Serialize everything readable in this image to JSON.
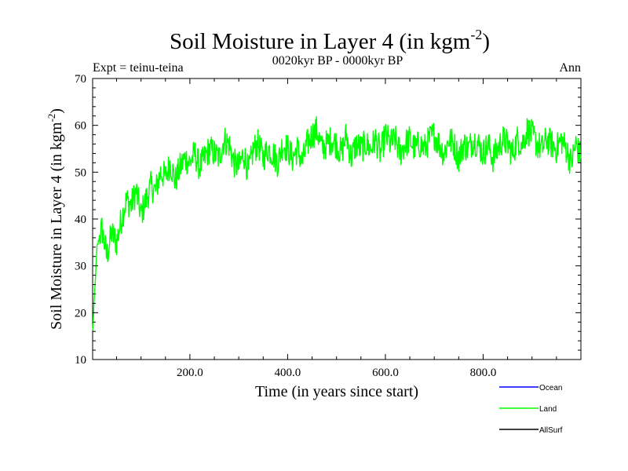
{
  "header": {
    "title": "Soil Moisture in Layer 4 (in kgm",
    "title_sup": "-2",
    "title_close": ")",
    "expt": "Expt = teinu-teina",
    "period": "0020kyr BP - 0000kyr BP",
    "season": "Ann"
  },
  "chart_data": {
    "type": "line",
    "title": "Soil Moisture in Layer 4 (in kgm-2)",
    "xlabel": "Time (in years since start)",
    "ylabel": "Soil Moisture in Layer 4 (in kgm-2)",
    "ylabel_main": "Soil Moisture in Layer 4 (in kgm",
    "ylabel_sup": "-2",
    "ylabel_close": ")",
    "xlim": [
      1,
      1000
    ],
    "ylim": [
      10,
      70
    ],
    "xticks": [
      200,
      400,
      600,
      800
    ],
    "xtick_labels": [
      "200.0",
      "400.0",
      "600.0",
      "800.0"
    ],
    "yticks": [
      10,
      20,
      30,
      40,
      50,
      60,
      70
    ],
    "ytick_labels": [
      "10",
      "20",
      "30",
      "40",
      "50",
      "60",
      "70"
    ],
    "legend": [
      {
        "name": "Ocean",
        "color": "#0000ff"
      },
      {
        "name": "Land",
        "color": "#00ff00"
      },
      {
        "name": "AllSurf",
        "color": "#000000"
      }
    ],
    "series": [
      {
        "name": "Land",
        "color": "#00ff00",
        "x": [
          1,
          10,
          20,
          30,
          40,
          50,
          60,
          70,
          80,
          90,
          100,
          110,
          120,
          130,
          140,
          150,
          160,
          170,
          180,
          190,
          200,
          210,
          220,
          230,
          240,
          250,
          260,
          270,
          280,
          290,
          300,
          310,
          320,
          330,
          340,
          350,
          360,
          370,
          380,
          390,
          400,
          410,
          420,
          430,
          440,
          450,
          460,
          470,
          480,
          490,
          500,
          510,
          520,
          530,
          540,
          550,
          560,
          570,
          580,
          590,
          600,
          610,
          620,
          630,
          640,
          650,
          660,
          670,
          680,
          690,
          700,
          710,
          720,
          730,
          740,
          750,
          760,
          770,
          780,
          790,
          800,
          810,
          820,
          830,
          840,
          850,
          860,
          870,
          880,
          890,
          900,
          910,
          920,
          930,
          940,
          950,
          960,
          970,
          980,
          990,
          1000
        ],
        "values": [
          16,
          34,
          38,
          32,
          37,
          35,
          40,
          44,
          43,
          46,
          41,
          44,
          47,
          46,
          50,
          49,
          52,
          48,
          51,
          53,
          52,
          54,
          51,
          53,
          55,
          54,
          53,
          57,
          56,
          52,
          51,
          54,
          50,
          55,
          56,
          53,
          55,
          54,
          52,
          56,
          55,
          53,
          55,
          52,
          56,
          58,
          59,
          55,
          56,
          57,
          56,
          54,
          58,
          53,
          56,
          55,
          56,
          55,
          57,
          54,
          58,
          56,
          57,
          54,
          56,
          57,
          55,
          56,
          55,
          57,
          58,
          56,
          54,
          57,
          56,
          53,
          56,
          55,
          57,
          56,
          54,
          56,
          53,
          55,
          57,
          56,
          54,
          57,
          56,
          59,
          58,
          56,
          55,
          57,
          56,
          55,
          57,
          55,
          52,
          56,
          53
        ]
      }
    ]
  }
}
